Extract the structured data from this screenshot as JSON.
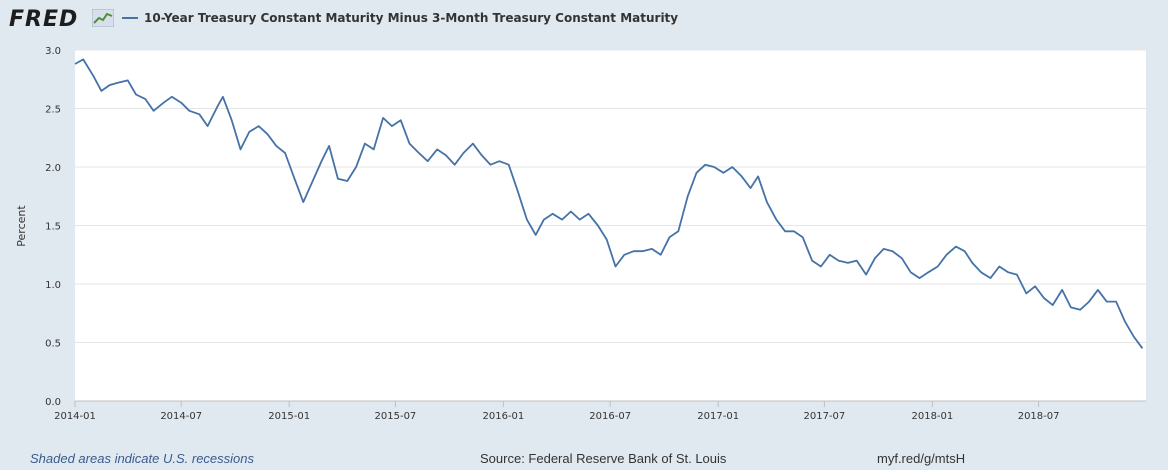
{
  "header": {
    "logo_text": "FRED",
    "logo_icon": "chart-line-icon",
    "series_title": "10-Year Treasury Constant Maturity Minus 3-Month Treasury Constant Maturity"
  },
  "footer": {
    "recessions_note": "Shaded areas indicate U.S. recessions",
    "source": "Source: Federal Reserve Bank of St. Louis",
    "short_url": "myf.red/g/mtsH"
  },
  "colors": {
    "line": "#4572a7",
    "background": "#e1e9f0",
    "plot_background": "#ffffff",
    "grid": "#e6e6e6"
  },
  "chart_data": {
    "type": "line",
    "ylabel": "Percent",
    "xlabel": "",
    "ylim": [
      0.0,
      3.0
    ],
    "yticks": [
      "0.0",
      "0.5",
      "1.0",
      "1.5",
      "2.0",
      "2.5",
      "3.0"
    ],
    "xlim": [
      "2014-01",
      "2018-12"
    ],
    "xticks": [
      "2014-01",
      "2014-07",
      "2015-01",
      "2015-07",
      "2016-01",
      "2016-07",
      "2017-01",
      "2017-07",
      "2018-01",
      "2018-07"
    ],
    "grid": "horizontal",
    "series": [
      {
        "values": [
          [
            "2014-01-01",
            2.88
          ],
          [
            "2014-01-15",
            2.92
          ],
          [
            "2014-02-01",
            2.78
          ],
          [
            "2014-02-15",
            2.65
          ],
          [
            "2014-03-01",
            2.7
          ],
          [
            "2014-03-15",
            2.72
          ],
          [
            "2014-04-01",
            2.74
          ],
          [
            "2014-04-15",
            2.62
          ],
          [
            "2014-05-01",
            2.58
          ],
          [
            "2014-05-15",
            2.48
          ],
          [
            "2014-06-01",
            2.55
          ],
          [
            "2014-06-15",
            2.6
          ],
          [
            "2014-07-01",
            2.55
          ],
          [
            "2014-07-15",
            2.48
          ],
          [
            "2014-08-01",
            2.45
          ],
          [
            "2014-08-15",
            2.35
          ],
          [
            "2014-09-01",
            2.52
          ],
          [
            "2014-09-10",
            2.6
          ],
          [
            "2014-09-25",
            2.4
          ],
          [
            "2014-10-10",
            2.15
          ],
          [
            "2014-10-25",
            2.3
          ],
          [
            "2014-11-10",
            2.35
          ],
          [
            "2014-11-25",
            2.28
          ],
          [
            "2014-12-10",
            2.18
          ],
          [
            "2014-12-25",
            2.12
          ],
          [
            "2015-01-10",
            1.9
          ],
          [
            "2015-01-25",
            1.7
          ],
          [
            "2015-02-10",
            1.88
          ],
          [
            "2015-02-25",
            2.05
          ],
          [
            "2015-03-10",
            2.18
          ],
          [
            "2015-03-25",
            1.9
          ],
          [
            "2015-04-10",
            1.88
          ],
          [
            "2015-04-25",
            2.0
          ],
          [
            "2015-05-10",
            2.2
          ],
          [
            "2015-05-25",
            2.15
          ],
          [
            "2015-06-10",
            2.42
          ],
          [
            "2015-06-25",
            2.35
          ],
          [
            "2015-07-10",
            2.4
          ],
          [
            "2015-07-25",
            2.2
          ],
          [
            "2015-08-10",
            2.12
          ],
          [
            "2015-08-25",
            2.05
          ],
          [
            "2015-09-10",
            2.15
          ],
          [
            "2015-09-25",
            2.1
          ],
          [
            "2015-10-10",
            2.02
          ],
          [
            "2015-10-25",
            2.12
          ],
          [
            "2015-11-10",
            2.2
          ],
          [
            "2015-11-25",
            2.1
          ],
          [
            "2015-12-10",
            2.02
          ],
          [
            "2015-12-25",
            2.05
          ],
          [
            "2016-01-10",
            2.02
          ],
          [
            "2016-01-25",
            1.8
          ],
          [
            "2016-02-10",
            1.55
          ],
          [
            "2016-02-25",
            1.42
          ],
          [
            "2016-03-10",
            1.55
          ],
          [
            "2016-03-25",
            1.6
          ],
          [
            "2016-04-10",
            1.55
          ],
          [
            "2016-04-25",
            1.62
          ],
          [
            "2016-05-10",
            1.55
          ],
          [
            "2016-05-25",
            1.6
          ],
          [
            "2016-06-10",
            1.5
          ],
          [
            "2016-06-25",
            1.38
          ],
          [
            "2016-07-10",
            1.15
          ],
          [
            "2016-07-25",
            1.25
          ],
          [
            "2016-08-10",
            1.28
          ],
          [
            "2016-08-25",
            1.28
          ],
          [
            "2016-09-10",
            1.3
          ],
          [
            "2016-09-25",
            1.25
          ],
          [
            "2016-10-10",
            1.4
          ],
          [
            "2016-10-25",
            1.45
          ],
          [
            "2016-11-10",
            1.75
          ],
          [
            "2016-11-25",
            1.95
          ],
          [
            "2016-12-10",
            2.02
          ],
          [
            "2016-12-25",
            2.0
          ],
          [
            "2017-01-10",
            1.95
          ],
          [
            "2017-01-25",
            2.0
          ],
          [
            "2017-02-10",
            1.92
          ],
          [
            "2017-02-25",
            1.82
          ],
          [
            "2017-03-10",
            1.92
          ],
          [
            "2017-03-25",
            1.7
          ],
          [
            "2017-04-10",
            1.55
          ],
          [
            "2017-04-25",
            1.45
          ],
          [
            "2017-05-10",
            1.45
          ],
          [
            "2017-05-25",
            1.4
          ],
          [
            "2017-06-10",
            1.2
          ],
          [
            "2017-06-25",
            1.15
          ],
          [
            "2017-07-10",
            1.25
          ],
          [
            "2017-07-25",
            1.2
          ],
          [
            "2017-08-10",
            1.18
          ],
          [
            "2017-08-25",
            1.2
          ],
          [
            "2017-09-10",
            1.08
          ],
          [
            "2017-09-25",
            1.22
          ],
          [
            "2017-10-10",
            1.3
          ],
          [
            "2017-10-25",
            1.28
          ],
          [
            "2017-11-10",
            1.22
          ],
          [
            "2017-11-25",
            1.1
          ],
          [
            "2017-12-10",
            1.05
          ],
          [
            "2017-12-25",
            1.1
          ],
          [
            "2018-01-10",
            1.15
          ],
          [
            "2018-01-25",
            1.25
          ],
          [
            "2018-02-10",
            1.32
          ],
          [
            "2018-02-25",
            1.28
          ],
          [
            "2018-03-10",
            1.18
          ],
          [
            "2018-03-25",
            1.1
          ],
          [
            "2018-04-10",
            1.05
          ],
          [
            "2018-04-25",
            1.15
          ],
          [
            "2018-05-10",
            1.1
          ],
          [
            "2018-05-25",
            1.08
          ],
          [
            "2018-06-10",
            0.92
          ],
          [
            "2018-06-25",
            0.98
          ],
          [
            "2018-07-10",
            0.88
          ],
          [
            "2018-07-25",
            0.82
          ],
          [
            "2018-08-10",
            0.95
          ],
          [
            "2018-08-25",
            0.8
          ],
          [
            "2018-09-10",
            0.78
          ],
          [
            "2018-09-25",
            0.85
          ],
          [
            "2018-10-10",
            0.95
          ],
          [
            "2018-10-25",
            0.85
          ],
          [
            "2018-11-10",
            0.85
          ],
          [
            "2018-11-25",
            0.68
          ],
          [
            "2018-12-10",
            0.55
          ],
          [
            "2018-12-25",
            0.45
          ]
        ]
      }
    ]
  }
}
